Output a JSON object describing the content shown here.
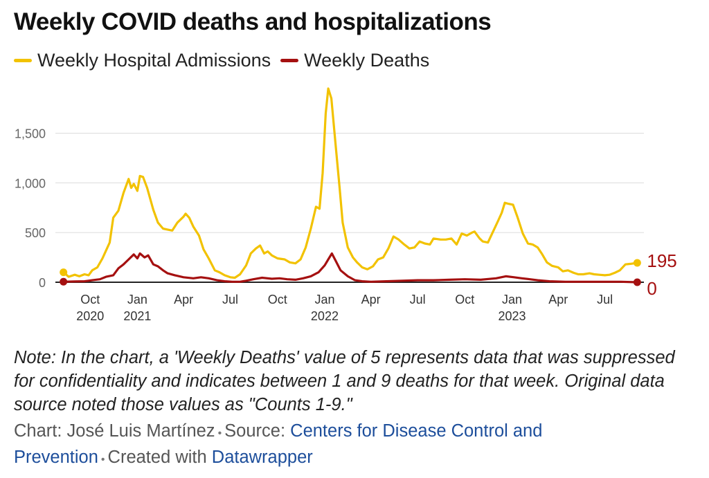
{
  "title": "Weekly COVID deaths and hospitalizations",
  "colors": {
    "hospital": "#f2c200",
    "deaths": "#a51010",
    "grid": "#e1e1e1",
    "axis": "#222222"
  },
  "note": "Note: In the chart, a 'Weekly Deaths' value of 5 represents data that was suppressed for confidentiality and indicates between 1 and 9 deaths for that week. Original data source noted those values as \"Counts 1-9.\"",
  "footer": {
    "chart_label": "Chart:",
    "author": "José Luis Martínez",
    "source_label": "Source:",
    "source": "Centers for Disease Control and Prevention",
    "created_label": "Created with",
    "tool": "Datawrapper"
  },
  "chart_data": {
    "type": "line",
    "title": "Weekly COVID deaths and hospitalizations",
    "xlabel": "",
    "ylabel": "",
    "ylim": [
      0,
      1950
    ],
    "yticks": [
      0,
      500,
      1000,
      1500
    ],
    "ytick_labels": [
      "0",
      "500",
      "1,000",
      "1,500"
    ],
    "xlim": [
      "2020-08-01",
      "2023-09-15"
    ],
    "grid": true,
    "legend_position": "top-left",
    "xticks": [
      {
        "date": "2020-10-01",
        "label": "Oct",
        "year": "2020"
      },
      {
        "date": "2021-01-01",
        "label": "Jan",
        "year": "2021"
      },
      {
        "date": "2021-04-01",
        "label": "Apr",
        "year": ""
      },
      {
        "date": "2021-07-01",
        "label": "Jul",
        "year": ""
      },
      {
        "date": "2021-10-01",
        "label": "Oct",
        "year": ""
      },
      {
        "date": "2022-01-01",
        "label": "Jan",
        "year": "2022"
      },
      {
        "date": "2022-04-01",
        "label": "Apr",
        "year": ""
      },
      {
        "date": "2022-07-01",
        "label": "Jul",
        "year": ""
      },
      {
        "date": "2022-10-01",
        "label": "Oct",
        "year": ""
      },
      {
        "date": "2023-01-01",
        "label": "Jan",
        "year": "2023"
      },
      {
        "date": "2023-04-01",
        "label": "Apr",
        "year": ""
      },
      {
        "date": "2023-07-01",
        "label": "Jul",
        "year": ""
      }
    ],
    "series": [
      {
        "name": "Weekly Hospital Admissions",
        "end_label": "195",
        "points": [
          [
            "2020-08-10",
            100
          ],
          [
            "2020-08-20",
            55
          ],
          [
            "2020-09-01",
            75
          ],
          [
            "2020-09-10",
            60
          ],
          [
            "2020-09-20",
            80
          ],
          [
            "2020-09-28",
            70
          ],
          [
            "2020-10-05",
            120
          ],
          [
            "2020-10-15",
            150
          ],
          [
            "2020-10-25",
            240
          ],
          [
            "2020-11-01",
            320
          ],
          [
            "2020-11-08",
            400
          ],
          [
            "2020-11-15",
            650
          ],
          [
            "2020-11-25",
            720
          ],
          [
            "2020-12-05",
            900
          ],
          [
            "2020-12-15",
            1040
          ],
          [
            "2020-12-20",
            950
          ],
          [
            "2020-12-25",
            990
          ],
          [
            "2021-01-01",
            920
          ],
          [
            "2021-01-06",
            1070
          ],
          [
            "2021-01-12",
            1060
          ],
          [
            "2021-01-20",
            950
          ],
          [
            "2021-02-01",
            730
          ],
          [
            "2021-02-10",
            600
          ],
          [
            "2021-02-20",
            540
          ],
          [
            "2021-03-01",
            530
          ],
          [
            "2021-03-10",
            520
          ],
          [
            "2021-03-20",
            600
          ],
          [
            "2021-04-01",
            660
          ],
          [
            "2021-04-05",
            690
          ],
          [
            "2021-04-12",
            650
          ],
          [
            "2021-04-20",
            560
          ],
          [
            "2021-05-01",
            470
          ],
          [
            "2021-05-10",
            330
          ],
          [
            "2021-05-20",
            240
          ],
          [
            "2021-06-01",
            120
          ],
          [
            "2021-06-10",
            100
          ],
          [
            "2021-06-20",
            70
          ],
          [
            "2021-07-01",
            50
          ],
          [
            "2021-07-10",
            45
          ],
          [
            "2021-07-20",
            80
          ],
          [
            "2021-08-01",
            170
          ],
          [
            "2021-08-10",
            290
          ],
          [
            "2021-08-20",
            340
          ],
          [
            "2021-08-28",
            370
          ],
          [
            "2021-09-05",
            290
          ],
          [
            "2021-09-12",
            310
          ],
          [
            "2021-09-20",
            270
          ],
          [
            "2021-10-01",
            240
          ],
          [
            "2021-10-15",
            230
          ],
          [
            "2021-10-25",
            200
          ],
          [
            "2021-11-05",
            190
          ],
          [
            "2021-11-15",
            230
          ],
          [
            "2021-11-25",
            350
          ],
          [
            "2021-12-05",
            540
          ],
          [
            "2021-12-15",
            760
          ],
          [
            "2021-12-22",
            740
          ],
          [
            "2021-12-28",
            1100
          ],
          [
            "2022-01-03",
            1700
          ],
          [
            "2022-01-08",
            1950
          ],
          [
            "2022-01-14",
            1850
          ],
          [
            "2022-01-22",
            1400
          ],
          [
            "2022-01-30",
            950
          ],
          [
            "2022-02-05",
            600
          ],
          [
            "2022-02-15",
            350
          ],
          [
            "2022-02-25",
            250
          ],
          [
            "2022-03-05",
            200
          ],
          [
            "2022-03-15",
            150
          ],
          [
            "2022-03-25",
            130
          ],
          [
            "2022-04-05",
            160
          ],
          [
            "2022-04-15",
            230
          ],
          [
            "2022-04-25",
            250
          ],
          [
            "2022-05-05",
            340
          ],
          [
            "2022-05-15",
            460
          ],
          [
            "2022-05-25",
            430
          ],
          [
            "2022-06-05",
            380
          ],
          [
            "2022-06-15",
            340
          ],
          [
            "2022-06-25",
            350
          ],
          [
            "2022-07-05",
            410
          ],
          [
            "2022-07-15",
            390
          ],
          [
            "2022-07-25",
            380
          ],
          [
            "2022-08-01",
            440
          ],
          [
            "2022-08-15",
            430
          ],
          [
            "2022-08-25",
            430
          ],
          [
            "2022-09-05",
            440
          ],
          [
            "2022-09-15",
            380
          ],
          [
            "2022-09-25",
            490
          ],
          [
            "2022-10-05",
            470
          ],
          [
            "2022-10-15",
            500
          ],
          [
            "2022-10-20",
            510
          ],
          [
            "2022-10-30",
            440
          ],
          [
            "2022-11-05",
            410
          ],
          [
            "2022-11-15",
            400
          ],
          [
            "2022-11-25",
            510
          ],
          [
            "2022-12-05",
            620
          ],
          [
            "2022-12-12",
            700
          ],
          [
            "2022-12-18",
            800
          ],
          [
            "2022-12-25",
            790
          ],
          [
            "2023-01-03",
            780
          ],
          [
            "2023-01-12",
            650
          ],
          [
            "2023-01-22",
            490
          ],
          [
            "2023-02-01",
            390
          ],
          [
            "2023-02-10",
            380
          ],
          [
            "2023-02-20",
            350
          ],
          [
            "2023-03-01",
            280
          ],
          [
            "2023-03-10",
            200
          ],
          [
            "2023-03-20",
            165
          ],
          [
            "2023-04-01",
            150
          ],
          [
            "2023-04-10",
            110
          ],
          [
            "2023-04-20",
            120
          ],
          [
            "2023-05-01",
            95
          ],
          [
            "2023-05-10",
            80
          ],
          [
            "2023-05-20",
            80
          ],
          [
            "2023-06-01",
            90
          ],
          [
            "2023-06-10",
            80
          ],
          [
            "2023-06-20",
            75
          ],
          [
            "2023-07-01",
            70
          ],
          [
            "2023-07-10",
            75
          ],
          [
            "2023-07-20",
            95
          ],
          [
            "2023-07-30",
            120
          ],
          [
            "2023-08-10",
            180
          ],
          [
            "2023-08-20",
            185
          ],
          [
            "2023-09-02",
            195
          ]
        ]
      },
      {
        "name": "Weekly Deaths",
        "end_label": "0",
        "points": [
          [
            "2020-08-10",
            5
          ],
          [
            "2020-09-01",
            8
          ],
          [
            "2020-09-20",
            10
          ],
          [
            "2020-10-05",
            20
          ],
          [
            "2020-10-20",
            30
          ],
          [
            "2020-11-01",
            55
          ],
          [
            "2020-11-15",
            70
          ],
          [
            "2020-11-25",
            140
          ],
          [
            "2020-12-05",
            180
          ],
          [
            "2020-12-15",
            230
          ],
          [
            "2020-12-25",
            280
          ],
          [
            "2021-01-01",
            240
          ],
          [
            "2021-01-06",
            290
          ],
          [
            "2021-01-15",
            250
          ],
          [
            "2021-01-22",
            270
          ],
          [
            "2021-02-01",
            180
          ],
          [
            "2021-02-10",
            160
          ],
          [
            "2021-02-20",
            120
          ],
          [
            "2021-03-01",
            90
          ],
          [
            "2021-03-15",
            70
          ],
          [
            "2021-04-01",
            50
          ],
          [
            "2021-04-20",
            40
          ],
          [
            "2021-05-05",
            50
          ],
          [
            "2021-05-20",
            40
          ],
          [
            "2021-06-05",
            20
          ],
          [
            "2021-06-20",
            10
          ],
          [
            "2021-07-05",
            5
          ],
          [
            "2021-07-20",
            5
          ],
          [
            "2021-08-01",
            15
          ],
          [
            "2021-08-15",
            30
          ],
          [
            "2021-09-01",
            45
          ],
          [
            "2021-09-20",
            35
          ],
          [
            "2021-10-05",
            40
          ],
          [
            "2021-10-20",
            30
          ],
          [
            "2021-11-05",
            25
          ],
          [
            "2021-11-20",
            40
          ],
          [
            "2021-12-05",
            60
          ],
          [
            "2021-12-20",
            100
          ],
          [
            "2022-01-01",
            170
          ],
          [
            "2022-01-08",
            230
          ],
          [
            "2022-01-15",
            290
          ],
          [
            "2022-01-22",
            220
          ],
          [
            "2022-02-01",
            120
          ],
          [
            "2022-02-15",
            60
          ],
          [
            "2022-03-01",
            20
          ],
          [
            "2022-03-15",
            10
          ],
          [
            "2022-04-01",
            5
          ],
          [
            "2022-05-01",
            10
          ],
          [
            "2022-06-01",
            15
          ],
          [
            "2022-07-01",
            20
          ],
          [
            "2022-08-01",
            20
          ],
          [
            "2022-09-01",
            25
          ],
          [
            "2022-10-01",
            30
          ],
          [
            "2022-11-01",
            25
          ],
          [
            "2022-12-01",
            40
          ],
          [
            "2022-12-20",
            60
          ],
          [
            "2023-01-05",
            50
          ],
          [
            "2023-01-20",
            40
          ],
          [
            "2023-02-05",
            30
          ],
          [
            "2023-02-20",
            20
          ],
          [
            "2023-03-15",
            10
          ],
          [
            "2023-04-15",
            5
          ],
          [
            "2023-06-01",
            5
          ],
          [
            "2023-08-01",
            5
          ],
          [
            "2023-09-02",
            0
          ]
        ]
      }
    ]
  }
}
